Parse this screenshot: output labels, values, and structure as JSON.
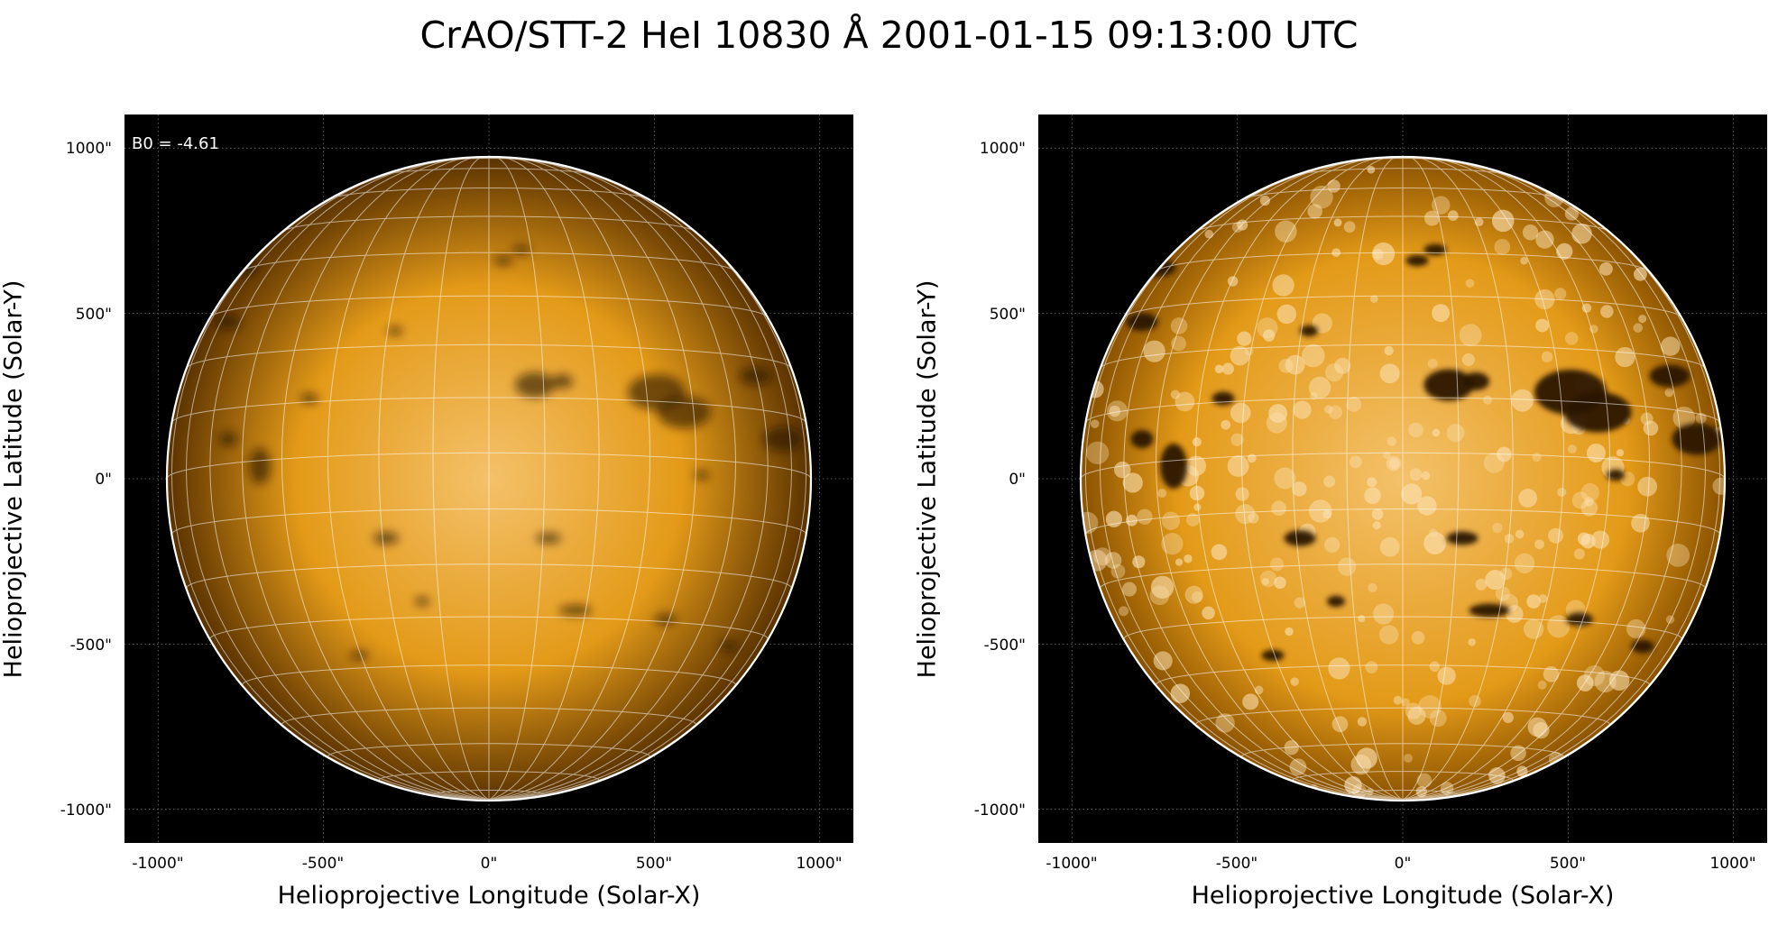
{
  "title": "CrAO/STT-2 HeI 10830 Å 2001-01-15 09:13:00 UTC",
  "colors": {
    "disk_base": "#e39a18",
    "disk_light": "#f4c16a",
    "disk_dark": "#2a1600",
    "limb_line": "#ffffff",
    "grid_line": "#ffffff",
    "background": "#000000"
  },
  "panels": [
    {
      "id": "left",
      "annotation": "B0 = -4.61",
      "contrast": "low",
      "xlabel": "Helioprojective Longitude (Solar-X)",
      "ylabel": "Helioprojective Latitude (Solar-Y)",
      "xticks": [
        "-1000\"",
        "-500\"",
        "0\"",
        "500\"",
        "1000\""
      ],
      "yticks": [
        "1000\"",
        "500\"",
        "0\"",
        "-500\"",
        "-1000\""
      ]
    },
    {
      "id": "right",
      "annotation": "",
      "contrast": "high",
      "xlabel": "Helioprojective Longitude (Solar-X)",
      "ylabel": "Helioprojective Latitude (Solar-Y)",
      "xticks": [
        "-1000\"",
        "-500\"",
        "0\"",
        "500\"",
        "1000\""
      ],
      "yticks": [
        "1000\"",
        "500\"",
        "0\"",
        "-500\"",
        "-1000\""
      ]
    }
  ]
}
